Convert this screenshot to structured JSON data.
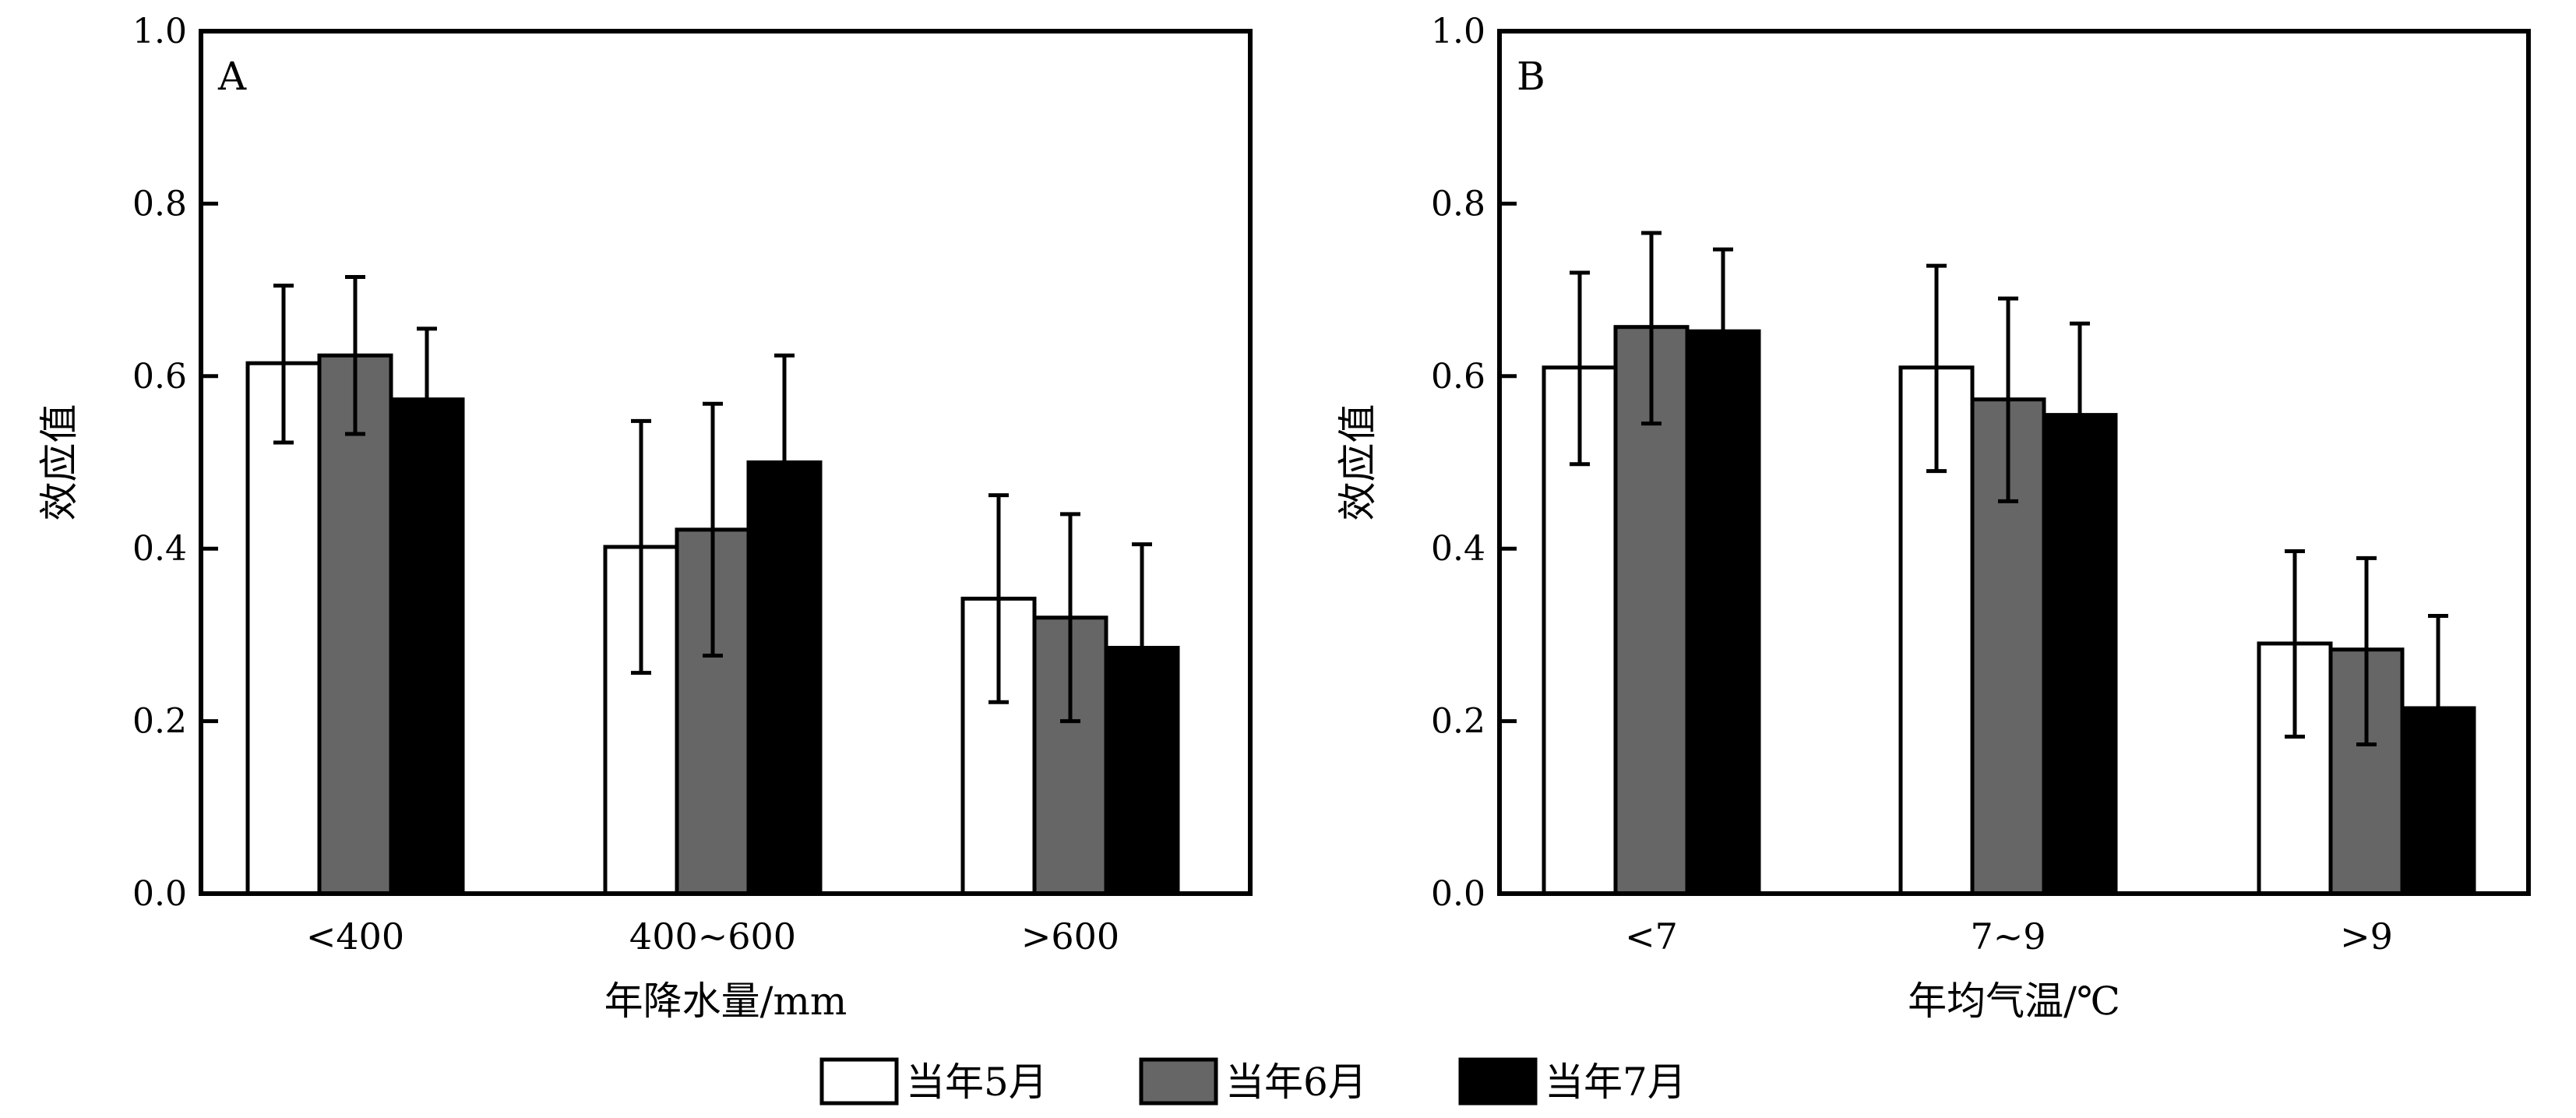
{
  "legend": {
    "placement": "bottom-center",
    "items": [
      {
        "label": "当年5月",
        "color": "#ffffff"
      },
      {
        "label": "当年6月",
        "color": "#666666"
      },
      {
        "label": "当年7月",
        "color": "#000000"
      }
    ]
  },
  "chart_data": [
    {
      "type": "bar",
      "panel": "A",
      "xlabel": "年降水量/mm",
      "ylabel": "效应值",
      "ylim": [
        0,
        1.0
      ],
      "yticks": [
        "0.0",
        "0.2",
        "0.4",
        "0.6",
        "0.8",
        "1.0"
      ],
      "categories": [
        "<400",
        "400~600",
        ">600"
      ],
      "series": [
        {
          "name": "当年5月",
          "color": "#ffffff",
          "values": [
            0.615,
            0.402,
            0.342
          ],
          "err_low": [
            0.523,
            0.256,
            0.222
          ],
          "err_high": [
            0.705,
            0.548,
            0.462
          ]
        },
        {
          "name": "当年6月",
          "color": "#666666",
          "values": [
            0.624,
            0.422,
            0.32
          ],
          "err_low": [
            0.533,
            0.276,
            0.2
          ],
          "err_high": [
            0.715,
            0.568,
            0.44
          ]
        },
        {
          "name": "当年7月",
          "color": "#000000",
          "values": [
            0.573,
            0.5,
            0.285
          ],
          "err_low": [
            0.573,
            0.5,
            0.285
          ],
          "err_high": [
            0.655,
            0.624,
            0.405
          ]
        }
      ]
    },
    {
      "type": "bar",
      "panel": "B",
      "xlabel": "年均气温/℃",
      "ylabel": "效应值",
      "ylim": [
        0,
        1.0
      ],
      "yticks": [
        "0.0",
        "0.2",
        "0.4",
        "0.6",
        "0.8",
        "1.0"
      ],
      "categories": [
        "<7",
        "7~9",
        ">9"
      ],
      "series": [
        {
          "name": "当年5月",
          "color": "#ffffff",
          "values": [
            0.61,
            0.61,
            0.29
          ],
          "err_low": [
            0.498,
            0.49,
            0.182
          ],
          "err_high": [
            0.72,
            0.728,
            0.397
          ]
        },
        {
          "name": "当年6月",
          "color": "#666666",
          "values": [
            0.657,
            0.573,
            0.283
          ],
          "err_low": [
            0.545,
            0.455,
            0.173
          ],
          "err_high": [
            0.766,
            0.69,
            0.389
          ]
        },
        {
          "name": "当年7月",
          "color": "#000000",
          "values": [
            0.652,
            0.555,
            0.215
          ],
          "err_low": [
            0.652,
            0.555,
            0.215
          ],
          "err_high": [
            0.747,
            0.661,
            0.322
          ]
        }
      ]
    }
  ]
}
